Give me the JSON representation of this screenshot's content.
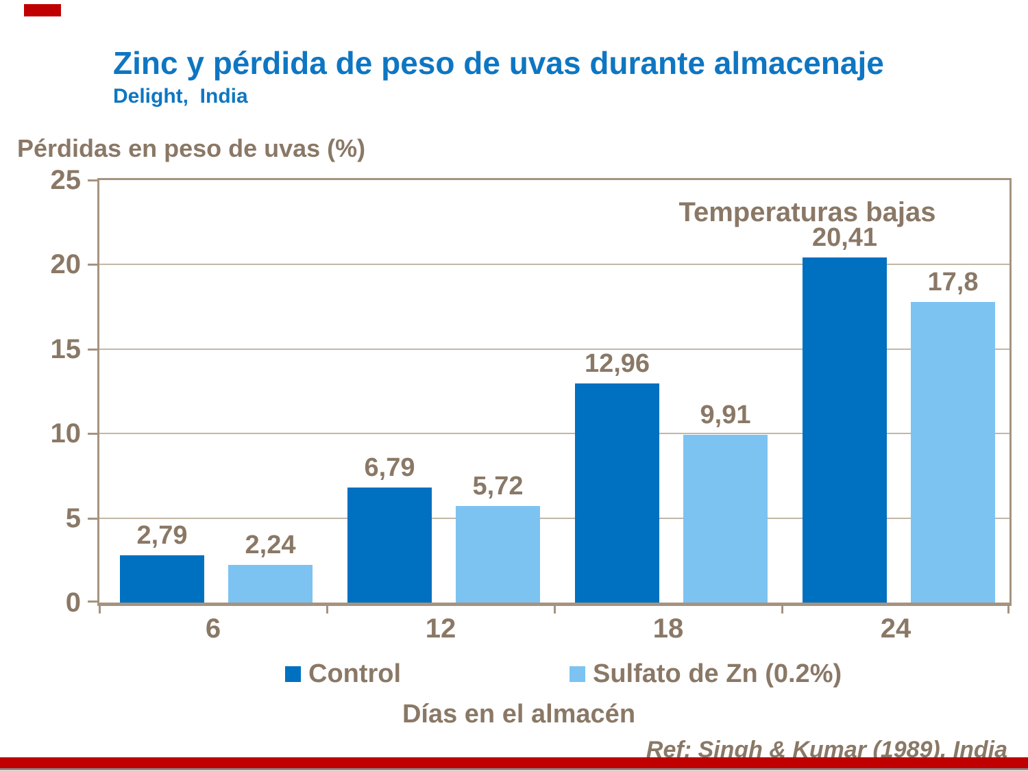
{
  "header": {
    "title": "Zinc y pérdida de peso de uvas durante almacenaje",
    "subtitle": "Delight,  India"
  },
  "chart_data": {
    "type": "bar",
    "title": "Zinc y pérdida de peso de uvas durante almacenaje",
    "subtitle": "Delight, India",
    "ylabel": "Pérdidas en peso de uvas (%)",
    "xlabel": "Días en el almacén",
    "categories": [
      "6",
      "12",
      "18",
      "24"
    ],
    "series": [
      {
        "name": "Control",
        "color": "#0070C0",
        "values": [
          2.79,
          6.79,
          12.96,
          20.41
        ],
        "labels": [
          "2,79",
          "6,79",
          "12,96",
          "20,41"
        ]
      },
      {
        "name": "Sulfato de Zn (0.2%)",
        "color": "#7CC3F2",
        "values": [
          2.24,
          5.72,
          9.91,
          17.8
        ],
        "labels": [
          "2,24",
          "5,72",
          "9,91",
          "17,8"
        ]
      }
    ],
    "ylim": [
      0,
      25
    ],
    "yticks": [
      0,
      5,
      10,
      15,
      20,
      25
    ],
    "grid": true,
    "legend_position": "bottom",
    "annotation": "Temperaturas bajas"
  },
  "footer": {
    "reference": "Ref: Singh & Kumar (1989), India"
  },
  "colors": {
    "title_blue": "#0E76C2",
    "text_brown": "#8A7866",
    "control_blue": "#0070C0",
    "sulfato_blue": "#7CC3F2",
    "axis_tan": "#A5937F",
    "gridline": "#C2B6A6",
    "accent_red": "#C00000",
    "footer_line_gray": "#8C8C8C"
  }
}
